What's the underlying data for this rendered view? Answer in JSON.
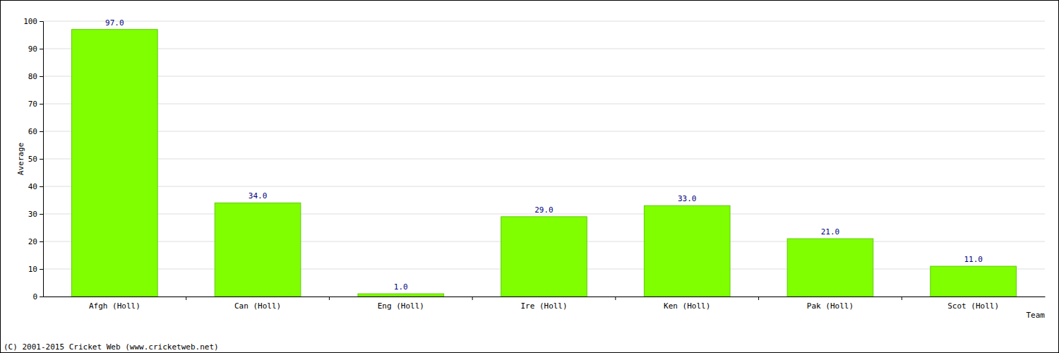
{
  "chart_data": {
    "type": "bar",
    "categories": [
      "Afgh (Holl)",
      "Can (Holl)",
      "Eng (Holl)",
      "Ire (Holl)",
      "Ken (Holl)",
      "Pak (Holl)",
      "Scot (Holl)"
    ],
    "values": [
      97,
      34,
      1,
      29,
      33,
      21,
      11
    ],
    "value_labels": [
      "97.0",
      "34.0",
      "1.0",
      "29.0",
      "33.0",
      "21.0",
      "11.0"
    ],
    "data_labels": true,
    "color": "#80ff00",
    "x_label": "Team",
    "y_label": "Average",
    "ylim": [
      0,
      100
    ],
    "yticks": [
      0,
      10,
      20,
      30,
      40,
      50,
      60,
      70,
      80,
      90,
      100
    ],
    "grid": true,
    "annotations": [
      "(C) 2001-2015 Cricket Web (www.cricketweb.net)"
    ]
  }
}
